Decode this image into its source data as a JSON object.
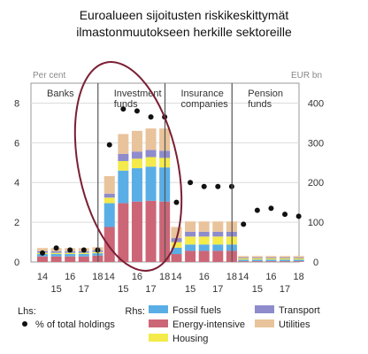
{
  "chart_data": {
    "type": "bar",
    "title": [
      "Euroalueen sijoitusten riskikeskittymät",
      "ilmastonmuutokseen herkille sektoreille"
    ],
    "left_unit": "Per cent",
    "right_unit": "EUR bn",
    "left_ticks": [
      "8",
      "6",
      "4",
      "2",
      "0"
    ],
    "right_ticks": [
      "400",
      "300",
      "200",
      "100",
      "0"
    ],
    "ylim_left": [
      0,
      9
    ],
    "ylim_right": [
      0,
      450
    ],
    "panels": [
      {
        "name": "Banks",
        "label_lines": [
          "Banks"
        ]
      },
      {
        "name": "Investment funds",
        "label_lines": [
          "Investment",
          "funds"
        ]
      },
      {
        "name": "Insurance companies",
        "label_lines": [
          "Insurance",
          "companies"
        ]
      },
      {
        "name": "Pension funds",
        "label_lines": [
          "Pension",
          "funds"
        ]
      }
    ],
    "x_labels": [
      "14",
      "15",
      "16",
      "17",
      "18"
    ],
    "series": [
      {
        "name": "Energy-intensive",
        "color": "#cc6677",
        "values": [
          [
            14,
            14,
            14,
            14,
            16
          ],
          [
            88,
            148,
            152,
            154,
            152
          ],
          [
            20,
            28,
            28,
            28,
            28
          ],
          [
            2,
            2,
            2,
            2,
            2
          ]
        ]
      },
      {
        "name": "Fossil fuels",
        "color": "#5aaee6",
        "values": [
          [
            6,
            6,
            6,
            6,
            6
          ],
          [
            60,
            82,
            84,
            86,
            86
          ],
          [
            16,
            16,
            16,
            16,
            16
          ],
          [
            4,
            4,
            4,
            4,
            4
          ]
        ]
      },
      {
        "name": "Housing",
        "color": "#f4ea4a",
        "values": [
          [
            3,
            3,
            3,
            3,
            3
          ],
          [
            14,
            24,
            24,
            24,
            24
          ],
          [
            14,
            20,
            20,
            20,
            20
          ],
          [
            3,
            3,
            3,
            3,
            3
          ]
        ]
      },
      {
        "name": "Transport",
        "color": "#8e8ccc",
        "values": [
          [
            4,
            4,
            4,
            4,
            4
          ],
          [
            10,
            18,
            18,
            18,
            18
          ],
          [
            10,
            12,
            12,
            12,
            12
          ],
          [
            2,
            2,
            2,
            2,
            2
          ]
        ]
      },
      {
        "name": "Utilities",
        "color": "#e9c39b",
        "values": [
          [
            8,
            8,
            8,
            8,
            8
          ],
          [
            44,
            50,
            52,
            54,
            56
          ],
          [
            28,
            26,
            26,
            26,
            26
          ],
          [
            4,
            4,
            4,
            4,
            4
          ]
        ]
      }
    ],
    "pct_series": {
      "name": "% of total holdings",
      "values": [
        [
          0.45,
          0.7,
          0.6,
          0.6,
          0.6
        ],
        [
          5.9,
          7.7,
          7.6,
          7.3,
          7.3
        ],
        [
          3.0,
          4.0,
          3.8,
          3.8,
          3.8
        ],
        [
          1.9,
          2.6,
          2.7,
          2.4,
          2.3
        ]
      ]
    },
    "annotation": {
      "shape": "ellipse",
      "color": "#7a1f34"
    },
    "legend": {
      "lhs_label": "Lhs:",
      "rhs_label": "Rhs:",
      "lhs_items": [
        {
          "name": "% of total holdings",
          "kind": "dot"
        }
      ],
      "rhs_items": [
        {
          "name": "Fossil fuels",
          "color": "#5aaee6"
        },
        {
          "name": "Transport",
          "color": "#8e8ccc"
        },
        {
          "name": "Energy-intensive",
          "color": "#cc6677"
        },
        {
          "name": "Utilities",
          "color": "#e9c39b"
        },
        {
          "name": "Housing",
          "color": "#f4ea4a"
        }
      ]
    }
  }
}
